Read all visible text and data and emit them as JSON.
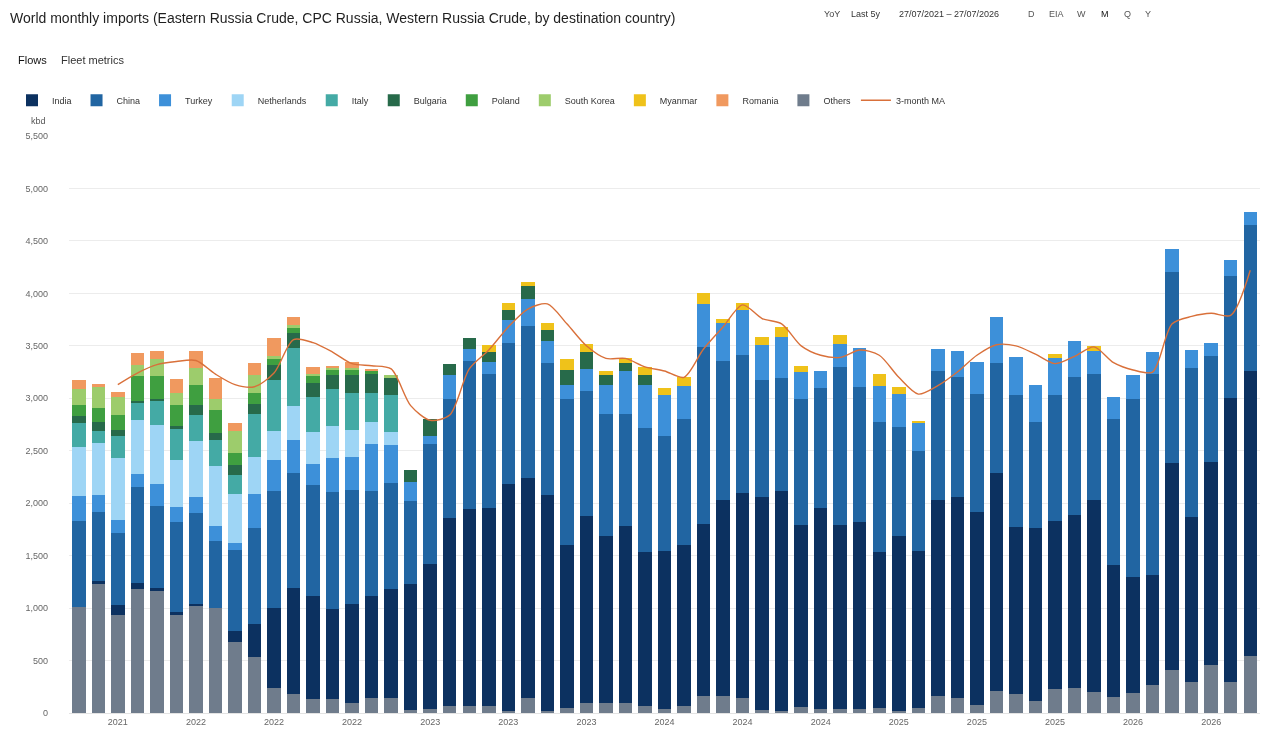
{
  "chart_data": {
    "type": "bar",
    "stacked": true,
    "title": "World monthly imports (Eastern Russia Crude, CPC Russia, Western Russia Crude, by destination country)",
    "ylabel": "kbd",
    "annotations": [
      "Flows",
      "Fleet metrics",
      "YoY",
      "Last 5y",
      "27/07/2021 – 27/07/2026",
      "D",
      "EIA",
      "W",
      "M",
      "Q",
      "Y"
    ],
    "categories": [
      null,
      null,
      "2021",
      null,
      null,
      null,
      "2022",
      null,
      null,
      null,
      "2022",
      null,
      null,
      null,
      "2022",
      null,
      null,
      null,
      "2023",
      null,
      null,
      null,
      "2023",
      null,
      null,
      null,
      "2023",
      null,
      null,
      null,
      "2024",
      null,
      null,
      null,
      "2024",
      null,
      null,
      null,
      "2024",
      null,
      null,
      null,
      "2025",
      null,
      null,
      null,
      "2025",
      null,
      null,
      null,
      "2025",
      null,
      null,
      null,
      "2026",
      null,
      null,
      null,
      "2026",
      null,
      null
    ],
    "ylim": [
      0,
      5500
    ],
    "yticks": [
      0,
      500,
      {
        "value": 1000,
        "label": "1,000"
      },
      {
        "value": 1500,
        "label": "1,500"
      },
      {
        "value": 2000,
        "label": "2,000"
      },
      {
        "value": 2500,
        "label": "2,500"
      },
      {
        "value": 3000,
        "label": "3,000"
      },
      {
        "value": 3500,
        "label": "3,500"
      },
      {
        "value": 4000,
        "label": "4,000"
      },
      {
        "value": 4500,
        "label": "4,500"
      },
      {
        "value": 5000,
        "label": "5,000"
      },
      {
        "value": 5500,
        "label": "5,500"
      }
    ],
    "grid": "y",
    "legend": "top left",
    "series": [
      {
        "name": "Others",
        "color": "#6f7c8c",
        "values": [
          1010,
          1230,
          930,
          1180,
          1160,
          930,
          1020,
          1000,
          680,
          530,
          240,
          180,
          130,
          130,
          100,
          140,
          140,
          30,
          40,
          70,
          70,
          70,
          20,
          140,
          20,
          50,
          100,
          100,
          100,
          70,
          40,
          70,
          160,
          160,
          140,
          30,
          20,
          60,
          40,
          40,
          40,
          50,
          20,
          50,
          160,
          140,
          80,
          210,
          180,
          110,
          230,
          240,
          200,
          150,
          190,
          270,
          410,
          300,
          460,
          300,
          540
        ]
      },
      {
        "name": "India",
        "color": "#0c3160",
        "values": [
          null,
          30,
          100,
          60,
          30,
          30,
          20,
          null,
          100,
          320,
          760,
          1010,
          990,
          860,
          940,
          980,
          1040,
          1200,
          1380,
          1790,
          1870,
          1880,
          2160,
          2100,
          2060,
          1550,
          1780,
          1590,
          1680,
          1460,
          1500,
          1530,
          1640,
          1870,
          1960,
          2030,
          2100,
          1730,
          1910,
          1750,
          1780,
          1480,
          1670,
          1490,
          1870,
          1920,
          1840,
          2080,
          1590,
          1650,
          1600,
          1650,
          1830,
          1260,
          1110,
          1050,
          1970,
          1570,
          1930,
          2700,
          2720
        ]
      },
      {
        "name": "China",
        "color": "#2165a2",
        "values": [
          820,
          660,
          690,
          910,
          780,
          860,
          870,
          640,
          770,
          910,
          1120,
          1100,
          1050,
          1120,
          1090,
          1000,
          1010,
          790,
          1140,
          1130,
          1420,
          1280,
          1350,
          1450,
          1260,
          1390,
          1190,
          1160,
          1070,
          1190,
          1100,
          1200,
          1690,
          1330,
          1310,
          1110,
          1070,
          1200,
          1150,
          1510,
          1290,
          1240,
          1040,
          960,
          1230,
          1140,
          1120,
          1050,
          1260,
          1010,
          1200,
          1310,
          1200,
          1390,
          1690,
          1910,
          1820,
          1420,
          1010,
          1170,
          1390
        ]
      },
      {
        "name": "Turkey",
        "color": "#3d90d9",
        "values": [
          240,
          160,
          120,
          130,
          210,
          140,
          150,
          140,
          70,
          330,
          290,
          310,
          200,
          320,
          310,
          440,
          360,
          180,
          80,
          230,
          110,
          120,
          220,
          260,
          210,
          140,
          210,
          280,
          410,
          410,
          390,
          320,
          410,
          360,
          430,
          340,
          390,
          260,
          160,
          220,
          370,
          350,
          310,
          260,
          210,
          250,
          310,
          430,
          360,
          360,
          350,
          350,
          220,
          210,
          230,
          210,
          220,
          170,
          130,
          150,
          130
        ]
      },
      {
        "name": "Netherlands",
        "color": "#9ed5f5",
        "values": [
          470,
          490,
          590,
          510,
          570,
          450,
          530,
          570,
          470,
          350,
          280,
          330,
          310,
          310,
          260,
          210,
          130,
          null,
          null,
          null,
          null,
          null,
          null,
          null,
          null,
          null,
          null,
          null,
          null,
          null,
          null,
          null,
          null,
          null,
          null,
          null,
          null,
          null,
          null,
          null,
          null,
          null,
          null,
          null,
          null,
          null,
          null,
          null,
          null,
          null,
          null,
          null,
          null,
          null,
          null,
          null,
          null,
          null,
          null,
          null,
          null
        ]
      },
      {
        "name": "Italy",
        "color": "#44aaa5",
        "values": [
          220,
          120,
          210,
          170,
          220,
          300,
          250,
          250,
          180,
          410,
          480,
          550,
          330,
          350,
          350,
          280,
          350,
          null,
          null,
          null,
          null,
          null,
          null,
          null,
          null,
          null,
          null,
          null,
          null,
          null,
          null,
          null,
          null,
          null,
          null,
          null,
          null,
          null,
          null,
          null,
          null,
          null,
          null,
          null,
          null,
          null,
          null,
          null,
          null,
          null,
          null,
          null,
          null,
          null,
          null,
          null,
          null,
          null,
          null,
          null,
          null
        ]
      },
      {
        "name": "Bulgaria",
        "color": "#276a4a",
        "values": [
          70,
          80,
          60,
          10,
          20,
          30,
          100,
          70,
          90,
          100,
          150,
          140,
          140,
          130,
          170,
          180,
          160,
          120,
          160,
          110,
          100,
          90,
          90,
          120,
          100,
          140,
          160,
          90,
          80,
          90,
          null,
          null,
          null,
          null,
          null,
          null,
          null,
          null,
          null,
          null,
          null,
          null,
          null,
          null,
          null,
          null,
          null,
          null,
          null,
          null,
          null,
          null,
          null,
          null,
          null,
          null,
          null,
          null,
          null,
          null,
          null
        ]
      },
      {
        "name": "Poland",
        "color": "#3f9f40",
        "values": [
          110,
          140,
          140,
          240,
          220,
          200,
          190,
          220,
          120,
          100,
          50,
          50,
          60,
          50,
          50,
          30,
          null,
          null,
          null,
          null,
          null,
          null,
          null,
          null,
          null,
          null,
          null,
          null,
          null,
          null,
          null,
          null,
          null,
          null,
          null,
          null,
          null,
          null,
          null,
          null,
          null,
          null,
          null,
          null,
          null,
          null,
          null,
          null,
          null,
          null,
          null,
          null,
          null,
          null,
          null,
          null,
          null,
          null,
          null,
          null,
          null
        ]
      },
      {
        "name": "South Korea",
        "color": "#9dcc6c",
        "values": [
          150,
          200,
          170,
          110,
          160,
          110,
          160,
          100,
          210,
          170,
          30,
          30,
          20,
          20,
          20,
          null,
          30,
          null,
          null,
          null,
          null,
          null,
          null,
          null,
          null,
          null,
          null,
          null,
          null,
          null,
          null,
          null,
          null,
          null,
          null,
          null,
          null,
          null,
          null,
          null,
          null,
          null,
          null,
          null,
          null,
          null,
          null,
          null,
          null,
          null,
          null,
          null,
          null,
          null,
          null,
          null,
          null,
          null,
          null,
          null,
          null
        ]
      },
      {
        "name": "Myanmar",
        "color": "#efc21a",
        "values": [
          null,
          null,
          null,
          null,
          null,
          null,
          null,
          null,
          null,
          null,
          null,
          null,
          null,
          null,
          null,
          null,
          null,
          null,
          null,
          null,
          null,
          70,
          70,
          40,
          70,
          100,
          80,
          40,
          40,
          80,
          70,
          80,
          100,
          40,
          70,
          70,
          100,
          60,
          null,
          80,
          null,
          110,
          70,
          20,
          null,
          null,
          null,
          null,
          null,
          null,
          40,
          null,
          50,
          null,
          null,
          null,
          null,
          null,
          null,
          null,
          null
        ]
      },
      {
        "name": "Romania",
        "color": "#f0995f",
        "values": [
          80,
          30,
          50,
          110,
          80,
          130,
          160,
          200,
          70,
          120,
          170,
          70,
          70,
          10,
          60,
          20,
          null,
          null,
          null,
          null,
          null,
          null,
          null,
          null,
          null,
          null,
          null,
          null,
          null,
          null,
          null,
          null,
          null,
          null,
          null,
          null,
          null,
          null,
          null,
          null,
          null,
          null,
          null,
          null,
          null,
          null,
          null,
          null,
          null,
          null,
          null,
          null,
          null,
          null,
          null,
          null,
          null,
          null,
          null,
          null,
          null
        ]
      },
      {
        "name": "3-month MA",
        "type": "line",
        "color": "#d9703a",
        "values": [
          null,
          null,
          3130,
          3240,
          3320,
          3350,
          3360,
          3230,
          3130,
          3110,
          3240,
          3560,
          3530,
          3440,
          3330,
          3310,
          3280,
          2930,
          2790,
          2840,
          3280,
          3460,
          3680,
          3850,
          3900,
          3710,
          3500,
          3380,
          3380,
          3300,
          3260,
          3200,
          3470,
          3680,
          3890,
          3760,
          3710,
          3500,
          3410,
          3390,
          3460,
          3410,
          3200,
          3040,
          3120,
          3250,
          3410,
          3510,
          3500,
          3420,
          3330,
          3400,
          3490,
          3340,
          3270,
          3250,
          3710,
          3780,
          3810,
          3790,
          4220
        ]
      }
    ]
  }
}
